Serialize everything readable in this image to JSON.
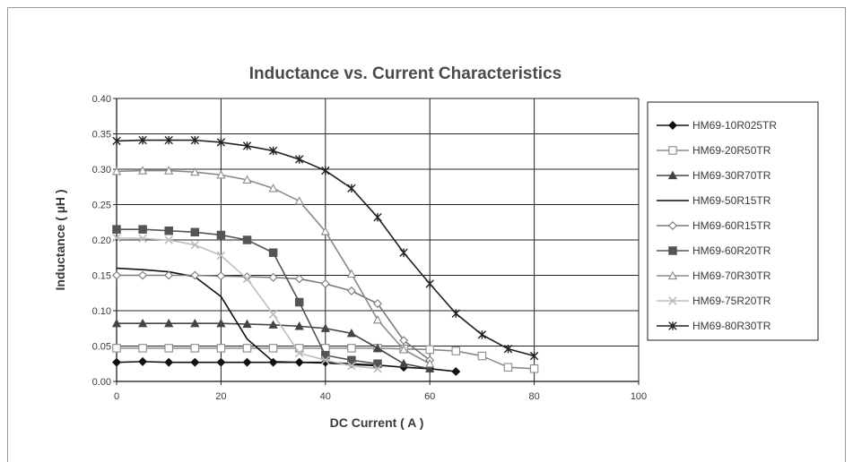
{
  "chart_data": {
    "type": "line",
    "title": "Inductance vs. Current Characteristics",
    "xlabel": "DC Current ( A )",
    "ylabel": "Inductance ( µH )",
    "xlim": [
      0,
      100
    ],
    "ylim": [
      0,
      0.4
    ],
    "x_ticks": [
      "0",
      "20",
      "40",
      "60",
      "80",
      "100"
    ],
    "y_ticks": [
      "0.00",
      "0.05",
      "0.10",
      "0.15",
      "0.20",
      "0.25",
      "0.30",
      "0.35",
      "0.40"
    ],
    "grid": true,
    "legend_position": "right",
    "series": [
      {
        "name": "HM69-10R025TR",
        "marker": "diamond-filled",
        "color": "#111111",
        "x": [
          0,
          5,
          10,
          15,
          20,
          25,
          30,
          35,
          40,
          45,
          50,
          55,
          60,
          65
        ],
        "y": [
          0.027,
          0.028,
          0.027,
          0.027,
          0.027,
          0.027,
          0.027,
          0.027,
          0.027,
          0.025,
          0.023,
          0.02,
          0.018,
          0.014
        ]
      },
      {
        "name": "HM69-20R50TR",
        "marker": "square-open",
        "color": "#8a8a8a",
        "x": [
          0,
          5,
          10,
          15,
          20,
          25,
          30,
          35,
          40,
          45,
          50,
          55,
          60,
          65,
          70,
          75,
          80
        ],
        "y": [
          0.047,
          0.047,
          0.047,
          0.047,
          0.047,
          0.047,
          0.047,
          0.047,
          0.047,
          0.047,
          0.047,
          0.046,
          0.045,
          0.043,
          0.036,
          0.02,
          0.018
        ]
      },
      {
        "name": "HM69-30R70TR",
        "marker": "triangle-filled",
        "color": "#444444",
        "x": [
          0,
          5,
          10,
          15,
          20,
          25,
          30,
          35,
          40,
          45,
          50,
          55,
          60
        ],
        "y": [
          0.082,
          0.082,
          0.082,
          0.082,
          0.082,
          0.081,
          0.08,
          0.078,
          0.075,
          0.068,
          0.047,
          0.025,
          0.018
        ]
      },
      {
        "name": "HM69-50R15TR",
        "marker": "none",
        "color": "#111111",
        "x": [
          0,
          5,
          10,
          15,
          20,
          25,
          30,
          35,
          40,
          45,
          50
        ],
        "y": [
          0.16,
          0.158,
          0.155,
          0.148,
          0.12,
          0.06,
          0.028,
          0.027,
          0.026,
          0.024,
          0.022
        ]
      },
      {
        "name": "HM69-60R15TR",
        "marker": "diamond-open",
        "color": "#7a7a7a",
        "x": [
          0,
          5,
          10,
          15,
          20,
          25,
          30,
          35,
          40,
          45,
          50,
          55,
          60
        ],
        "y": [
          0.15,
          0.15,
          0.15,
          0.15,
          0.149,
          0.148,
          0.147,
          0.145,
          0.138,
          0.128,
          0.11,
          0.058,
          0.03
        ]
      },
      {
        "name": "HM69-60R20TR",
        "marker": "square-filled",
        "color": "#555555",
        "x": [
          0,
          5,
          10,
          15,
          20,
          25,
          30,
          35,
          40,
          45,
          50
        ],
        "y": [
          0.215,
          0.215,
          0.213,
          0.211,
          0.207,
          0.2,
          0.182,
          0.112,
          0.037,
          0.03,
          0.025
        ]
      },
      {
        "name": "HM69-70R30TR",
        "marker": "triangle-open",
        "color": "#8a8a8a",
        "x": [
          0,
          5,
          10,
          15,
          20,
          25,
          30,
          35,
          40,
          45,
          50,
          55,
          60
        ],
        "y": [
          0.297,
          0.298,
          0.298,
          0.296,
          0.292,
          0.285,
          0.273,
          0.255,
          0.212,
          0.152,
          0.087,
          0.045,
          0.025
        ]
      },
      {
        "name": "HM69-75R20TR",
        "marker": "x",
        "color": "#bdbdbd",
        "x": [
          0,
          5,
          10,
          15,
          20,
          25,
          30,
          35,
          40,
          45,
          50
        ],
        "y": [
          0.203,
          0.202,
          0.2,
          0.193,
          0.178,
          0.145,
          0.095,
          0.04,
          0.03,
          0.022,
          0.018
        ]
      },
      {
        "name": "HM69-80R30TR",
        "marker": "star",
        "color": "#222222",
        "x": [
          0,
          5,
          10,
          15,
          20,
          25,
          30,
          35,
          40,
          45,
          50,
          55,
          60,
          65,
          70,
          75,
          80
        ],
        "y": [
          0.34,
          0.341,
          0.341,
          0.341,
          0.338,
          0.333,
          0.326,
          0.314,
          0.298,
          0.273,
          0.232,
          0.182,
          0.138,
          0.096,
          0.066,
          0.046,
          0.036
        ]
      }
    ]
  }
}
